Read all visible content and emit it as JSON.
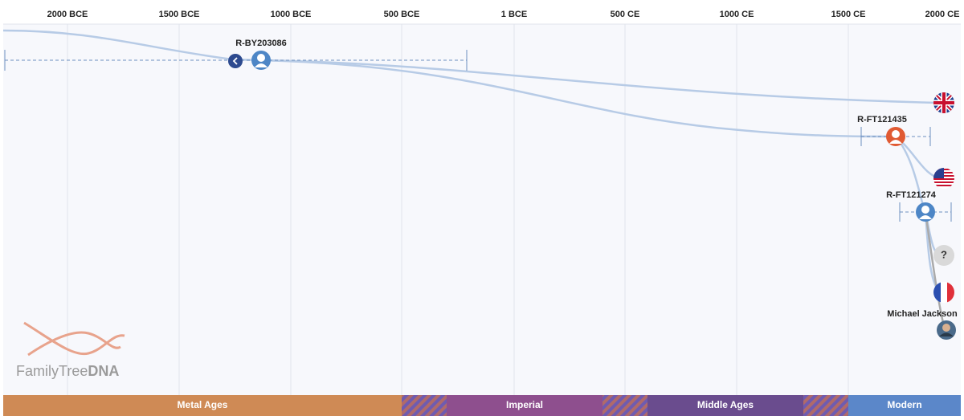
{
  "timeline": {
    "axis_labels": [
      "2000 BCE",
      "1500 BCE",
      "1000 BCE",
      "500 BCE",
      "1 BCE",
      "500 CE",
      "1000 CE",
      "1500 CE",
      "2000 CE"
    ],
    "nodes": [
      {
        "label": "R-BY203086"
      },
      {
        "label": "R-FT121435"
      },
      {
        "label": "R-FT121274"
      },
      {
        "label": "Michael Jackson"
      }
    ],
    "unknown_marker": "?",
    "eras": [
      "Metal Ages",
      "Imperial",
      "Middle Ages",
      "Modern"
    ],
    "logo": {
      "brand": "FamilyTree",
      "suffix": "DNA"
    }
  }
}
